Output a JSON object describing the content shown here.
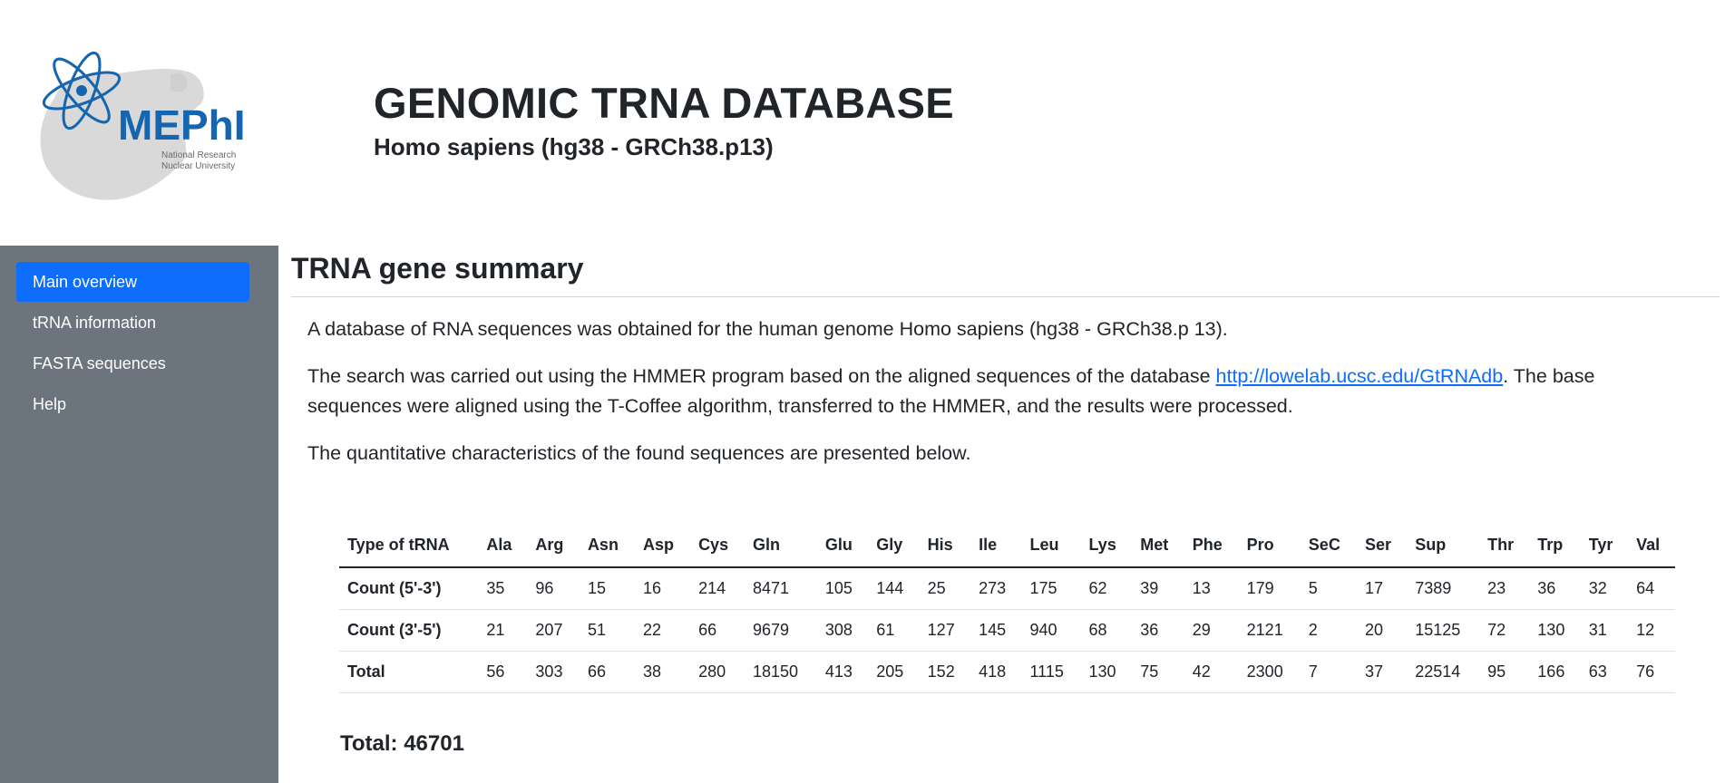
{
  "header": {
    "logo_text": "MEPhI",
    "logo_caption_line1": "National Research",
    "logo_caption_line2": "Nuclear University",
    "title": "GENOMIC TRNA DATABASE",
    "subtitle": "Homo sapiens (hg38 - GRCh38.p13)"
  },
  "sidebar": {
    "items": [
      {
        "label": "Main overview",
        "active": true
      },
      {
        "label": "tRNA information",
        "active": false
      },
      {
        "label": "FASTA sequences",
        "active": false
      },
      {
        "label": "Help",
        "active": false
      }
    ]
  },
  "main": {
    "title": "TRNA gene summary",
    "paragraph1": "A database of RNA sequences was obtained for the human genome Homo sapiens (hg38 - GRCh38.p 13).",
    "paragraph2_before": "The search was carried out using the HMMER program based on the aligned sequences of the database ",
    "paragraph2_link": "http://lowelab.ucsc.edu/GtRNAdb",
    "paragraph2_after": ". The base sequences were aligned using the T-Coffee algorithm, transferred to the HMMER, and the results were processed.",
    "paragraph3": "The quantitative characteristics of the found sequences are presented below.",
    "table": {
      "headers": [
        "Type of tRNA",
        "Ala",
        "Arg",
        "Asn",
        "Asp",
        "Cys",
        "Gln",
        "Glu",
        "Gly",
        "His",
        "Ile",
        "Leu",
        "Lys",
        "Met",
        "Phe",
        "Pro",
        "SeC",
        "Ser",
        "Sup",
        "Thr",
        "Trp",
        "Tyr",
        "Val"
      ],
      "rows": [
        [
          "Count (5'-3')",
          "35",
          "96",
          "15",
          "16",
          "214",
          "8471",
          "105",
          "144",
          "25",
          "273",
          "175",
          "62",
          "39",
          "13",
          "179",
          "5",
          "17",
          "7389",
          "23",
          "36",
          "32",
          "64"
        ],
        [
          "Count (3'-5')",
          "21",
          "207",
          "51",
          "22",
          "66",
          "9679",
          "308",
          "61",
          "127",
          "145",
          "940",
          "68",
          "36",
          "29",
          "2121",
          "2",
          "20",
          "15125",
          "72",
          "130",
          "31",
          "12"
        ],
        [
          "Total",
          "56",
          "303",
          "66",
          "38",
          "280",
          "18150",
          "413",
          "205",
          "152",
          "418",
          "1115",
          "130",
          "75",
          "42",
          "2300",
          "7",
          "37",
          "22514",
          "95",
          "166",
          "63",
          "76"
        ]
      ]
    },
    "grand_total": "Total: 46701"
  },
  "colors": {
    "sidebar_bg": "#6c757d",
    "active_nav": "#0d6efd",
    "link": "#0d6efd",
    "logo_blue": "#1565b0",
    "logo_gray": "#d9d9d9"
  }
}
